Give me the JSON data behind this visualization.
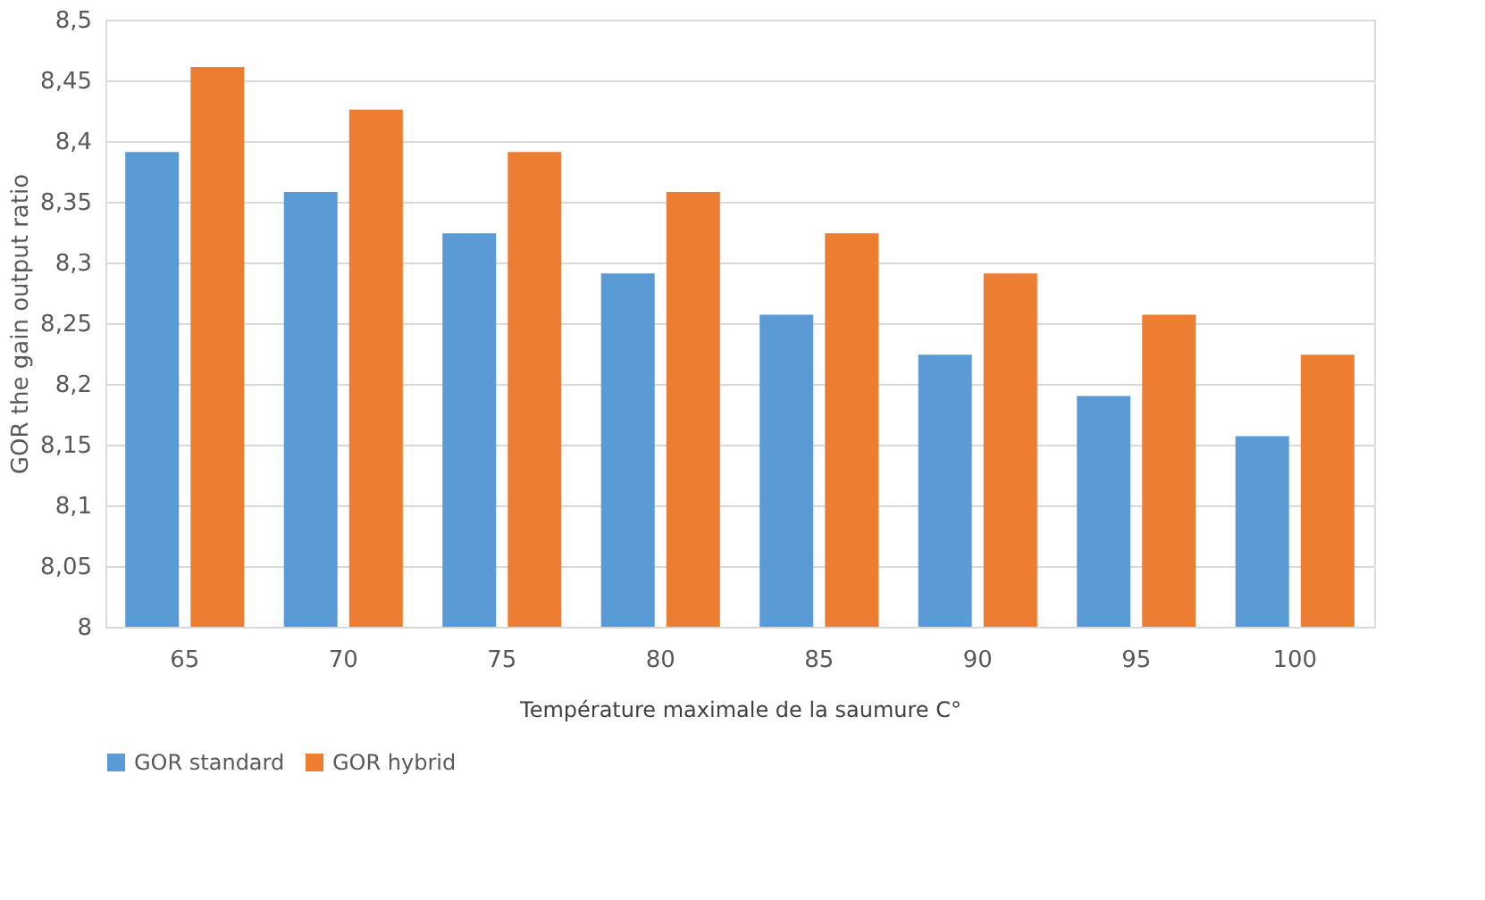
{
  "chart_data": {
    "type": "bar",
    "xlabel": "Température maximale de la saumure C°",
    "ylabel": "GOR the gain output ratio",
    "categories": [
      "65",
      "70",
      "75",
      "80",
      "85",
      "90",
      "95",
      "100"
    ],
    "series": [
      {
        "name": "GOR standard",
        "color": "#5b9bd5",
        "values": [
          8.391,
          8.358,
          8.324,
          8.291,
          8.257,
          8.224,
          8.19,
          8.157
        ]
      },
      {
        "name": "GOR hybrid",
        "color": "#ed7d31",
        "values": [
          8.461,
          8.426,
          8.391,
          8.358,
          8.324,
          8.291,
          8.257,
          8.224
        ]
      }
    ],
    "ylim": [
      8,
      8.5
    ],
    "yticks": [
      8,
      {
        "value": 8.05,
        "label": "8,05"
      },
      {
        "value": 8.1,
        "label": "8,1"
      },
      {
        "value": 8.15,
        "label": "8,15"
      },
      {
        "value": 8.2,
        "label": "8,2"
      },
      {
        "value": 8.25,
        "label": "8,25"
      },
      {
        "value": 8.3,
        "label": "8,3"
      },
      {
        "value": 8.35,
        "label": "8,35"
      },
      {
        "value": 8.4,
        "label": "8,4"
      },
      {
        "value": 8.45,
        "label": "8,45"
      },
      {
        "value": 8.5,
        "label": "8,5"
      }
    ],
    "grid": "y",
    "legend": "bottom"
  }
}
